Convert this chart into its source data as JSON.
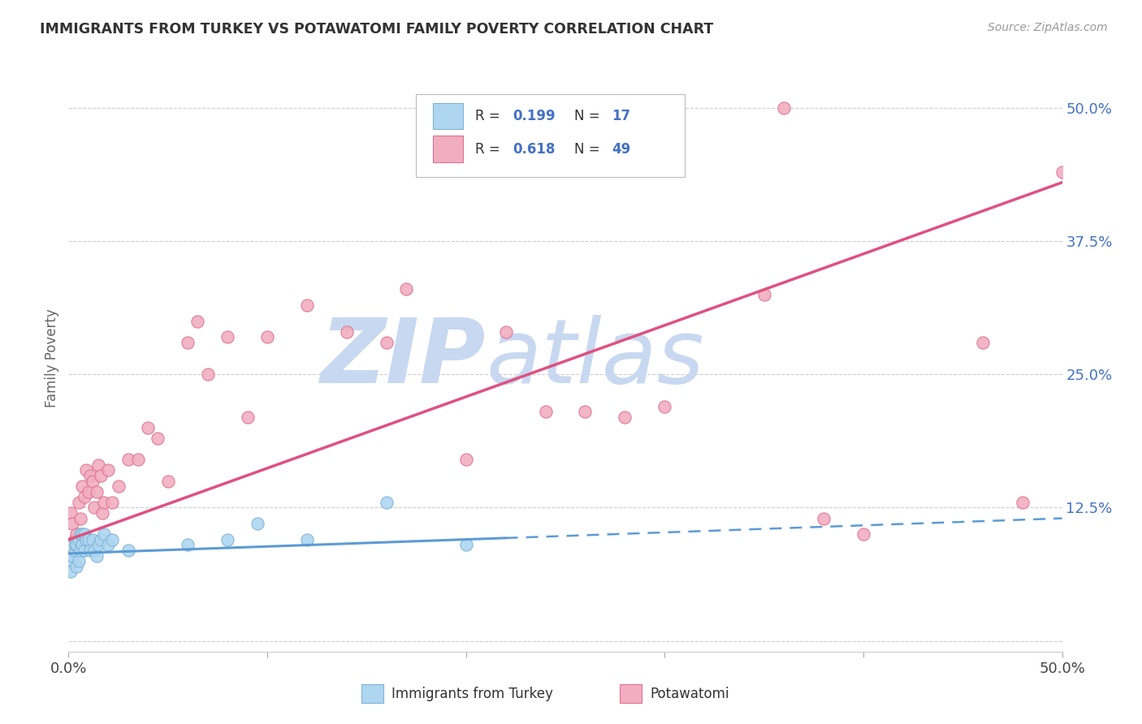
{
  "title": "IMMIGRANTS FROM TURKEY VS POTAWATOMI FAMILY POVERTY CORRELATION CHART",
  "source": "Source: ZipAtlas.com",
  "ylabel": "Family Poverty",
  "color_turkey": "#aed6f1",
  "color_turkey_edge": "#7fb3d3",
  "color_potawatomi": "#f1aec0",
  "color_potawatomi_edge": "#e07090",
  "color_line_turkey": "#5b9bd5",
  "color_line_potawatomi": "#e05080",
  "color_blue_text": "#4472c4",
  "watermark_color": "#c8d8f0",
  "xlim": [
    0.0,
    0.5
  ],
  "ylim": [
    -0.01,
    0.54
  ],
  "turkey_x": [
    0.001,
    0.002,
    0.002,
    0.003,
    0.003,
    0.004,
    0.004,
    0.005,
    0.005,
    0.006,
    0.006,
    0.007,
    0.007,
    0.008,
    0.008,
    0.009,
    0.01,
    0.011,
    0.012,
    0.013,
    0.014,
    0.015,
    0.016,
    0.018,
    0.02,
    0.022,
    0.03,
    0.06,
    0.08,
    0.095,
    0.12,
    0.16,
    0.2
  ],
  "turkey_y": [
    0.065,
    0.075,
    0.08,
    0.085,
    0.09,
    0.07,
    0.09,
    0.075,
    0.095,
    0.085,
    0.1,
    0.09,
    0.1,
    0.085,
    0.1,
    0.095,
    0.095,
    0.085,
    0.095,
    0.085,
    0.08,
    0.09,
    0.095,
    0.1,
    0.09,
    0.095,
    0.085,
    0.09,
    0.095,
    0.11,
    0.095,
    0.13,
    0.09
  ],
  "potawatomi_x": [
    0.001,
    0.002,
    0.003,
    0.004,
    0.005,
    0.006,
    0.007,
    0.008,
    0.009,
    0.01,
    0.011,
    0.012,
    0.013,
    0.014,
    0.015,
    0.016,
    0.017,
    0.018,
    0.02,
    0.022,
    0.025,
    0.03,
    0.035,
    0.04,
    0.045,
    0.05,
    0.06,
    0.065,
    0.07,
    0.08,
    0.09,
    0.1,
    0.12,
    0.14,
    0.16,
    0.17,
    0.2,
    0.22,
    0.24,
    0.26,
    0.28,
    0.3,
    0.35,
    0.38,
    0.4,
    0.46,
    0.48,
    0.5,
    0.36
  ],
  "potawatomi_y": [
    0.12,
    0.11,
    0.095,
    0.1,
    0.13,
    0.115,
    0.145,
    0.135,
    0.16,
    0.14,
    0.155,
    0.15,
    0.125,
    0.14,
    0.165,
    0.155,
    0.12,
    0.13,
    0.16,
    0.13,
    0.145,
    0.17,
    0.17,
    0.2,
    0.19,
    0.15,
    0.28,
    0.3,
    0.25,
    0.285,
    0.21,
    0.285,
    0.315,
    0.29,
    0.28,
    0.33,
    0.17,
    0.29,
    0.215,
    0.215,
    0.21,
    0.22,
    0.325,
    0.115,
    0.1,
    0.28,
    0.13,
    0.44,
    0.5
  ],
  "line_turkey_x0": 0.0,
  "line_turkey_x1": 0.5,
  "line_turkey_y0": 0.082,
  "line_turkey_y1": 0.115,
  "line_potawatomi_x0": 0.0,
  "line_potawatomi_x1": 0.5,
  "line_potawatomi_y0": 0.095,
  "line_potawatomi_y1": 0.43
}
